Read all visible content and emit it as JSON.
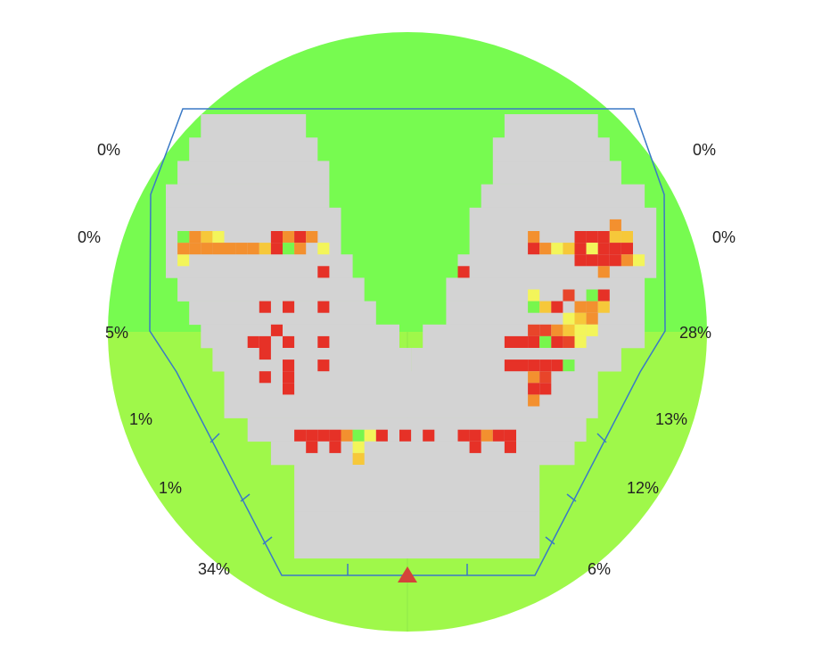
{
  "chart_data": {
    "type": "heatmap",
    "zone_labels": {
      "left": [
        "0%",
        "0%",
        "5%",
        "1%",
        "1%",
        "34%"
      ],
      "right": [
        "0%",
        "0%",
        "28%",
        "13%",
        "12%",
        "6%"
      ]
    },
    "colors": {
      "upper_zone": "#77fb50",
      "lower_zone": "#9ff84a",
      "zone_line": "#8fe84a",
      "pitch": "#d3d3d3",
      "outline": "#3a79c6",
      "marker": "#d4443a",
      "scale": [
        "#77f64d",
        "#f3f55a",
        "#f6c83a",
        "#f3902f",
        "#e8452a",
        "#e63127"
      ]
    },
    "grid": {
      "cols": 42,
      "rows": 39,
      "cells": [
        [
          3,
          10,
          2
        ],
        [
          2,
          10,
          3
        ],
        [
          4,
          10,
          1
        ],
        [
          9,
          10,
          5
        ],
        [
          10,
          10,
          3
        ],
        [
          11,
          10,
          5
        ],
        [
          12,
          10,
          3
        ],
        [
          2,
          11,
          3
        ],
        [
          3,
          11,
          3
        ],
        [
          4,
          11,
          3
        ],
        [
          5,
          11,
          3
        ],
        [
          6,
          11,
          3
        ],
        [
          7,
          11,
          3
        ],
        [
          8,
          11,
          2
        ],
        [
          9,
          11,
          5
        ],
        [
          10,
          11,
          0
        ],
        [
          11,
          11,
          3
        ],
        [
          13,
          11,
          1
        ],
        [
          1,
          12,
          1
        ],
        [
          1,
          11,
          3
        ],
        [
          1,
          10,
          0
        ],
        [
          13,
          13,
          5
        ],
        [
          8,
          16,
          5
        ],
        [
          10,
          16,
          5
        ],
        [
          13,
          16,
          5
        ],
        [
          9,
          18,
          5
        ],
        [
          7,
          19,
          5
        ],
        [
          8,
          19,
          5
        ],
        [
          10,
          19,
          5
        ],
        [
          13,
          19,
          5
        ],
        [
          8,
          20,
          5
        ],
        [
          10,
          21,
          5
        ],
        [
          13,
          21,
          5
        ],
        [
          8,
          22,
          5
        ],
        [
          10,
          22,
          5
        ],
        [
          10,
          23,
          5
        ],
        [
          25,
          13,
          5
        ],
        [
          11,
          27,
          5
        ],
        [
          12,
          27,
          5
        ],
        [
          13,
          27,
          5
        ],
        [
          14,
          27,
          5
        ],
        [
          15,
          27,
          3
        ],
        [
          16,
          27,
          0
        ],
        [
          17,
          27,
          1
        ],
        [
          18,
          27,
          5
        ],
        [
          20,
          27,
          5
        ],
        [
          22,
          27,
          5
        ],
        [
          25,
          27,
          5
        ],
        [
          26,
          27,
          5
        ],
        [
          27,
          27,
          3
        ],
        [
          28,
          27,
          5
        ],
        [
          29,
          27,
          5
        ],
        [
          12,
          28,
          5
        ],
        [
          14,
          28,
          5
        ],
        [
          16,
          28,
          1
        ],
        [
          26,
          28,
          5
        ],
        [
          29,
          28,
          5
        ],
        [
          16,
          29,
          2
        ],
        [
          31,
          10,
          3
        ],
        [
          35,
          10,
          5
        ],
        [
          36,
          10,
          5
        ],
        [
          37,
          10,
          5
        ],
        [
          38,
          10,
          2
        ],
        [
          39,
          10,
          2
        ],
        [
          38,
          9,
          3
        ],
        [
          31,
          11,
          5
        ],
        [
          32,
          11,
          3
        ],
        [
          33,
          11,
          1
        ],
        [
          34,
          11,
          2
        ],
        [
          35,
          11,
          5
        ],
        [
          36,
          11,
          1
        ],
        [
          37,
          11,
          5
        ],
        [
          38,
          11,
          5
        ],
        [
          39,
          11,
          5
        ],
        [
          36,
          12,
          5
        ],
        [
          37,
          12,
          5
        ],
        [
          38,
          12,
          5
        ],
        [
          39,
          12,
          3
        ],
        [
          35,
          12,
          5
        ],
        [
          40,
          12,
          1
        ],
        [
          37,
          13,
          3
        ],
        [
          31,
          15,
          1
        ],
        [
          34,
          15,
          4
        ],
        [
          36,
          15,
          0
        ],
        [
          37,
          15,
          5
        ],
        [
          31,
          16,
          0
        ],
        [
          32,
          16,
          2
        ],
        [
          33,
          16,
          5
        ],
        [
          35,
          16,
          3
        ],
        [
          36,
          16,
          3
        ],
        [
          37,
          16,
          2
        ],
        [
          34,
          17,
          1
        ],
        [
          35,
          17,
          2
        ],
        [
          36,
          17,
          3
        ],
        [
          31,
          18,
          4
        ],
        [
          32,
          18,
          4
        ],
        [
          33,
          18,
          3
        ],
        [
          34,
          18,
          2
        ],
        [
          35,
          18,
          1
        ],
        [
          36,
          18,
          1
        ],
        [
          31,
          19,
          5
        ],
        [
          32,
          19,
          0
        ],
        [
          33,
          19,
          5
        ],
        [
          34,
          19,
          4
        ],
        [
          35,
          19,
          1
        ],
        [
          29,
          19,
          5
        ],
        [
          30,
          19,
          5
        ],
        [
          29,
          21,
          5
        ],
        [
          30,
          21,
          5
        ],
        [
          31,
          21,
          5
        ],
        [
          32,
          21,
          5
        ],
        [
          33,
          21,
          5
        ],
        [
          34,
          21,
          0
        ],
        [
          31,
          22,
          3
        ],
        [
          32,
          22,
          4
        ],
        [
          31,
          23,
          5
        ],
        [
          31,
          24,
          3
        ],
        [
          32,
          23,
          5
        ]
      ]
    }
  }
}
